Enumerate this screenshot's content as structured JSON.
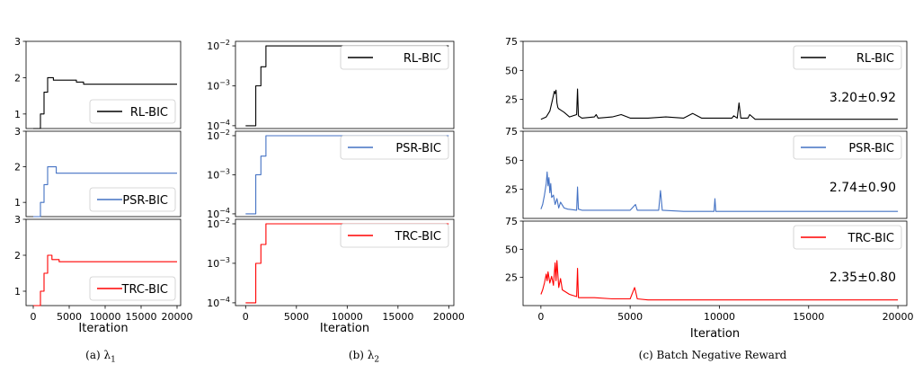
{
  "chart_data": [
    {
      "type": "line",
      "caption": "(a) λ",
      "caption_sub": "1",
      "xlabel": "Iteration",
      "xlim": [
        -1000,
        20500
      ],
      "xticks": [
        0,
        5000,
        10000,
        15000,
        20000
      ],
      "xtick_labels": [
        "0",
        "5000",
        "10000",
        "15000",
        "20000"
      ],
      "yscale": "linear",
      "panels": [
        {
          "series": {
            "name": "RL-BIC",
            "color": "#000000"
          },
          "ylim": [
            0.6,
            3.0
          ],
          "yticks": [
            1,
            2,
            3
          ],
          "ytick_labels": [
            "1",
            "2",
            "3"
          ],
          "legend_loc": "lower-right",
          "x": [
            0,
            1000,
            1000,
            1500,
            1500,
            2000,
            2000,
            2800,
            2800,
            6000,
            6000,
            7000,
            7000,
            20000
          ],
          "y": [
            0.6,
            0.6,
            1.0,
            1.0,
            1.6,
            1.6,
            2.0,
            2.0,
            1.93,
            1.93,
            1.88,
            1.88,
            1.82,
            1.82
          ]
        },
        {
          "series": {
            "name": "PSR-BIC",
            "color": "#4472c4"
          },
          "ylim": [
            0.6,
            3.0
          ],
          "yticks": [
            1,
            2,
            3
          ],
          "ytick_labels": [
            "1",
            "2",
            "3"
          ],
          "legend_loc": "lower-right",
          "x": [
            0,
            1000,
            1000,
            1500,
            1500,
            2000,
            2000,
            3200,
            3200,
            20000
          ],
          "y": [
            0.6,
            0.6,
            1.0,
            1.0,
            1.5,
            1.5,
            2.0,
            2.0,
            1.82,
            1.82
          ]
        },
        {
          "series": {
            "name": "TRC-BIC",
            "color": "#ff0000"
          },
          "ylim": [
            0.6,
            3.0
          ],
          "yticks": [
            1,
            2,
            3
          ],
          "ytick_labels": [
            "1",
            "2",
            "3"
          ],
          "legend_loc": "lower-right",
          "x": [
            0,
            1000,
            1000,
            1500,
            1500,
            2000,
            2000,
            2600,
            2600,
            3600,
            3600,
            20000
          ],
          "y": [
            0.6,
            0.6,
            1.0,
            1.0,
            1.5,
            1.5,
            2.0,
            2.0,
            1.88,
            1.88,
            1.82,
            1.82
          ]
        }
      ]
    },
    {
      "type": "line",
      "caption": "(b) λ",
      "caption_sub": "2",
      "xlabel": "Iteration",
      "xlim": [
        -1000,
        20500
      ],
      "xticks": [
        0,
        5000,
        10000,
        15000,
        20000
      ],
      "xtick_labels": [
        "0",
        "5000",
        "10000",
        "15000",
        "20000"
      ],
      "yscale": "log",
      "panels": [
        {
          "series": {
            "name": "RL-BIC",
            "color": "#000000"
          },
          "ylim": [
            8.5e-05,
            0.013
          ],
          "yticks": [
            0.0001,
            0.001,
            0.01
          ],
          "ytick_labels": [
            [
              "10",
              "−4"
            ],
            [
              "10",
              "−3"
            ],
            [
              "10",
              "−2"
            ]
          ],
          "legend_loc": "upper-right",
          "x": [
            0,
            1000,
            1000,
            1500,
            1500,
            2000,
            2000,
            20000
          ],
          "y": [
            0.0001,
            0.0001,
            0.001,
            0.001,
            0.003,
            0.003,
            0.01,
            0.01
          ]
        },
        {
          "series": {
            "name": "PSR-BIC",
            "color": "#4472c4"
          },
          "ylim": [
            8.5e-05,
            0.013
          ],
          "yticks": [
            0.0001,
            0.001,
            0.01
          ],
          "ytick_labels": [
            [
              "10",
              "−4"
            ],
            [
              "10",
              "−3"
            ],
            [
              "10",
              "−2"
            ]
          ],
          "legend_loc": "upper-right",
          "x": [
            0,
            1000,
            1000,
            1500,
            1500,
            2000,
            2000,
            20000
          ],
          "y": [
            0.0001,
            0.0001,
            0.001,
            0.001,
            0.003,
            0.003,
            0.01,
            0.01
          ]
        },
        {
          "series": {
            "name": "TRC-BIC",
            "color": "#ff0000"
          },
          "ylim": [
            8.5e-05,
            0.013
          ],
          "yticks": [
            0.0001,
            0.001,
            0.01
          ],
          "ytick_labels": [
            [
              "10",
              "−4"
            ],
            [
              "10",
              "−3"
            ],
            [
              "10",
              "−2"
            ]
          ],
          "legend_loc": "upper-right",
          "x": [
            0,
            1000,
            1000,
            1500,
            1500,
            2000,
            2000,
            20000
          ],
          "y": [
            0.0001,
            0.0001,
            0.001,
            0.001,
            0.003,
            0.003,
            0.01,
            0.01
          ]
        }
      ]
    },
    {
      "type": "line",
      "caption": "(c) Batch Negative Reward",
      "caption_sub": "",
      "xlabel": "Iteration",
      "xlim": [
        -1000,
        20500
      ],
      "xticks": [
        0,
        5000,
        10000,
        15000,
        20000
      ],
      "xtick_labels": [
        "0",
        "5000",
        "10000",
        "15000",
        "20000"
      ],
      "yscale": "linear",
      "panels": [
        {
          "series": {
            "name": "RL-BIC",
            "color": "#000000"
          },
          "ylim": [
            0,
            75
          ],
          "yticks": [
            25,
            50,
            75
          ],
          "ytick_labels": [
            "25",
            "50",
            "75"
          ],
          "legend_loc": "upper-right",
          "annotation": "3.20±0.92",
          "x": [
            0,
            300,
            500,
            650,
            750,
            800,
            850,
            900,
            950,
            1000,
            1100,
            1300,
            1600,
            2000,
            2050,
            2100,
            2300,
            3000,
            3100,
            3200,
            4000,
            4500,
            5000,
            6000,
            7000,
            8000,
            8500,
            9000,
            10000,
            10700,
            10800,
            11000,
            11100,
            11200,
            11300,
            11600,
            11700,
            12000,
            14000,
            16000,
            18000,
            20000
          ],
          "y": [
            8,
            10,
            15,
            25,
            32,
            30,
            33,
            22,
            18,
            17,
            16,
            14,
            10,
            12,
            34,
            11,
            9,
            10,
            12,
            9,
            10,
            12,
            9,
            9,
            10,
            9,
            13,
            9,
            9,
            9,
            11,
            9,
            22,
            9,
            9,
            9,
            12,
            8,
            8,
            8,
            8,
            8
          ]
        },
        {
          "series": {
            "name": "PSR-BIC",
            "color": "#4472c4"
          },
          "ylim": [
            0,
            75
          ],
          "yticks": [
            25,
            50,
            75
          ],
          "ytick_labels": [
            "25",
            "50",
            "75"
          ],
          "legend_loc": "upper-right",
          "annotation": "2.74±0.90",
          "x": [
            0,
            100,
            200,
            300,
            350,
            400,
            450,
            500,
            550,
            600,
            700,
            800,
            900,
            1000,
            1100,
            1300,
            1500,
            2000,
            2050,
            2100,
            2300,
            3000,
            4000,
            5000,
            5300,
            5400,
            6000,
            6600,
            6700,
            6800,
            8000,
            9000,
            9700,
            9750,
            9800,
            10000,
            12000,
            15000,
            18000,
            20000
          ],
          "y": [
            8,
            12,
            20,
            30,
            40,
            28,
            35,
            22,
            30,
            18,
            20,
            12,
            17,
            9,
            14,
            9,
            8,
            7,
            27,
            8,
            7,
            7,
            7,
            7,
            12,
            7,
            7,
            7,
            24,
            7,
            6,
            6,
            6,
            17,
            6,
            6,
            6,
            6,
            6,
            6
          ]
        },
        {
          "series": {
            "name": "TRC-BIC",
            "color": "#ff0000"
          },
          "ylim": [
            0,
            75
          ],
          "yticks": [
            25,
            50,
            75
          ],
          "ytick_labels": [
            "25",
            "50",
            "75"
          ],
          "legend_loc": "upper-right",
          "annotation": "2.35±0.80",
          "x": [
            0,
            100,
            200,
            300,
            350,
            400,
            500,
            600,
            700,
            800,
            850,
            900,
            1000,
            1100,
            1200,
            1400,
            1600,
            2000,
            2050,
            2100,
            2300,
            3000,
            4000,
            5000,
            5250,
            5300,
            5400,
            6000,
            7000,
            8000,
            10000,
            12000,
            15000,
            18000,
            20000
          ],
          "y": [
            10,
            14,
            20,
            28,
            22,
            30,
            20,
            26,
            18,
            38,
            22,
            40,
            16,
            24,
            14,
            12,
            10,
            8,
            33,
            7,
            7,
            7,
            6,
            6,
            16,
            13,
            6,
            5,
            5,
            5,
            5,
            5,
            5,
            5,
            5
          ]
        }
      ]
    }
  ]
}
